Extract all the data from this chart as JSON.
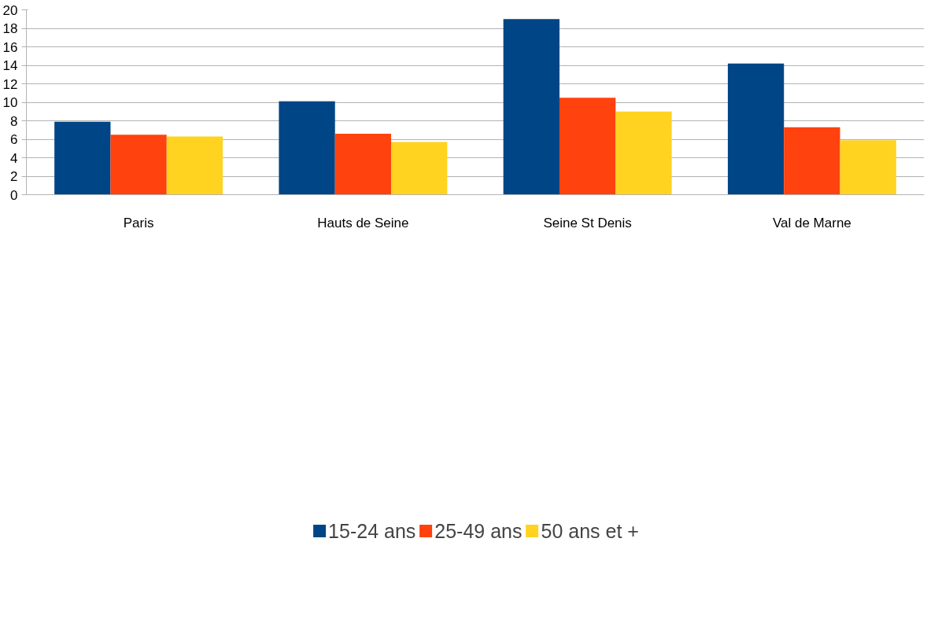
{
  "chart_data": {
    "type": "bar",
    "categories": [
      "Paris",
      "Hauts de Seine",
      "Seine St Denis",
      "Val de Marne"
    ],
    "series": [
      {
        "name": "15-24 ans",
        "color": "#004586",
        "values": [
          7.9,
          10.1,
          19.0,
          14.2
        ]
      },
      {
        "name": "25-49 ans",
        "color": "#ff420e",
        "values": [
          6.5,
          6.6,
          10.5,
          7.3
        ]
      },
      {
        "name": "50 ans et +",
        "color": "#ffd320",
        "values": [
          6.3,
          5.7,
          9.0,
          5.9
        ]
      }
    ],
    "ylim": [
      0,
      20
    ],
    "yticks": [
      0,
      2,
      4,
      6,
      8,
      10,
      12,
      14,
      16,
      18,
      20
    ],
    "grid": "y",
    "legend": "bottom"
  }
}
